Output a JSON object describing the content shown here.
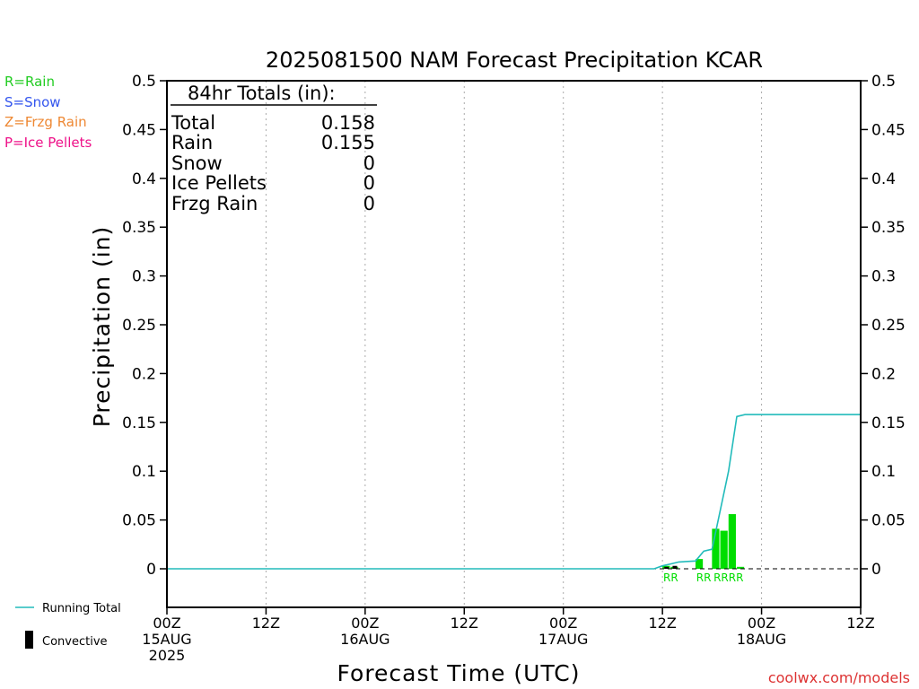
{
  "title": "2025081500 NAM Forecast Precipitation KCAR",
  "ptype_legend": [
    {
      "text": "R=Rain",
      "color": "#22cc22"
    },
    {
      "text": "S=Snow",
      "color": "#3355ee"
    },
    {
      "text": "Z=Frzg Rain",
      "color": "#ee8833"
    },
    {
      "text": "P=Ice Pellets",
      "color": "#ee1188"
    }
  ],
  "totals_box": {
    "header": "84hr Totals (in):",
    "rows": [
      {
        "label": "Total",
        "value": "0.158"
      },
      {
        "label": "Rain",
        "value": "0.155"
      },
      {
        "label": "Snow",
        "value": "0"
      },
      {
        "label": "Ice Pellets",
        "value": "0"
      },
      {
        "label": "Frzg Rain",
        "value": "0"
      }
    ]
  },
  "series_legend": {
    "running_total": "Running Total",
    "convective": "Convective"
  },
  "credit": "coolwx.com/models",
  "colors": {
    "rain_bar": "#00dd00",
    "running_total": "#22bbbb",
    "convective": "#000000",
    "credit": "#dd3333",
    "grid": "#aaaaaa"
  },
  "chart_data": {
    "type": "bar",
    "title": "2025081500 NAM Forecast Precipitation KCAR",
    "xlabel": "Forecast Time (UTC)",
    "ylabel": "Precipitation (in)",
    "x_unit": "forecast hour",
    "xlim": [
      0,
      84
    ],
    "ylim": [
      -0.04,
      0.5
    ],
    "y_ticks": [
      {
        "value": 0.5,
        "label": "0.5"
      },
      {
        "value": 0.45,
        "label": "0.45"
      },
      {
        "value": 0.4,
        "label": "0.4"
      },
      {
        "value": 0.35,
        "label": "0.35"
      },
      {
        "value": 0.3,
        "label": "0.3"
      },
      {
        "value": 0.25,
        "label": "0.25"
      },
      {
        "value": 0.2,
        "label": "0.2"
      },
      {
        "value": 0.15,
        "label": "0.15"
      },
      {
        "value": 0.1,
        "label": "0.1"
      },
      {
        "value": 0.05,
        "label": "0.05"
      },
      {
        "value": 0,
        "label": "0"
      }
    ],
    "x_ticks": [
      {
        "hour": 0,
        "lines": [
          "00Z",
          "15AUG",
          "2025"
        ]
      },
      {
        "hour": 12,
        "lines": [
          "12Z"
        ]
      },
      {
        "hour": 24,
        "lines": [
          "00Z",
          "16AUG"
        ]
      },
      {
        "hour": 36,
        "lines": [
          "12Z"
        ]
      },
      {
        "hour": 48,
        "lines": [
          "00Z",
          "17AUG"
        ]
      },
      {
        "hour": 60,
        "lines": [
          "12Z"
        ]
      },
      {
        "hour": 72,
        "lines": [
          "00Z",
          "18AUG"
        ]
      },
      {
        "hour": 84,
        "lines": [
          "12Z"
        ]
      }
    ],
    "grid": "vertical dotted at 12-hour intervals",
    "precip_bars": [
      {
        "start": 60,
        "end": 61,
        "value": 0.003
      },
      {
        "start": 61,
        "end": 62,
        "value": 0.002
      },
      {
        "start": 64,
        "end": 65,
        "value": 0.01
      },
      {
        "start": 66,
        "end": 67,
        "value": 0.041
      },
      {
        "start": 67,
        "end": 68,
        "value": 0.039
      },
      {
        "start": 68,
        "end": 69,
        "value": 0.056
      },
      {
        "start": 69,
        "end": 70,
        "value": 0.002
      }
    ],
    "convective_bars": [
      {
        "start": 60,
        "end": 61,
        "value": 0.002
      },
      {
        "start": 61,
        "end": 62,
        "value": 0.003
      }
    ],
    "ptype_codes": [
      {
        "start": 60,
        "end": 62,
        "text": "RR"
      },
      {
        "start": 64,
        "end": 66,
        "text": "RR"
      },
      {
        "start": 66,
        "end": 70,
        "text": "RRRR"
      }
    ],
    "running_total": {
      "name": "Running Total",
      "points": [
        [
          0,
          0
        ],
        [
          59,
          0
        ],
        [
          60,
          0.003
        ],
        [
          61,
          0.005
        ],
        [
          62,
          0.007
        ],
        [
          64,
          0.008
        ],
        [
          65,
          0.018
        ],
        [
          66,
          0.02
        ],
        [
          67,
          0.06
        ],
        [
          68,
          0.1
        ],
        [
          69,
          0.156
        ],
        [
          70,
          0.158
        ],
        [
          84,
          0.158
        ]
      ]
    }
  }
}
